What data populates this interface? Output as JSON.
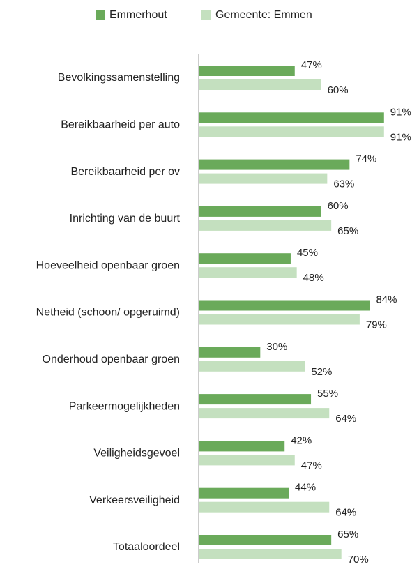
{
  "chart_data": {
    "type": "bar",
    "orientation": "horizontal",
    "categories": [
      "Bevolkingssamenstelling",
      "Bereikbaarheid per auto",
      "Bereikbaarheid per ov",
      "Inrichting van de buurt",
      "Hoeveelheid openbaar groen",
      "Netheid (schoon/ opgeruimd)",
      "Onderhoud openbaar groen",
      "Parkeermogelijkheden",
      "Veiligheidsgevoel",
      "Verkeersveiligheid",
      "Totaaloordeel"
    ],
    "series": [
      {
        "name": "Emmerhout",
        "color": "#6aaa5a",
        "values": [
          47,
          91,
          74,
          60,
          45,
          84,
          30,
          55,
          42,
          44,
          65
        ],
        "value_labels": [
          "47%",
          "91%",
          "74%",
          "60%",
          "45%",
          "84%",
          "30%",
          "55%",
          "42%",
          "44%",
          "65%"
        ]
      },
      {
        "name": "Gemeente: Emmen",
        "color": "#c4e0bf",
        "values": [
          60,
          91,
          63,
          65,
          48,
          79,
          52,
          64,
          47,
          64,
          70
        ],
        "value_labels": [
          "60%",
          "91%",
          "63%",
          "65%",
          "48%",
          "79%",
          "52%",
          "64%",
          "47%",
          "64%",
          "70%"
        ]
      }
    ],
    "legend": "top"
  }
}
